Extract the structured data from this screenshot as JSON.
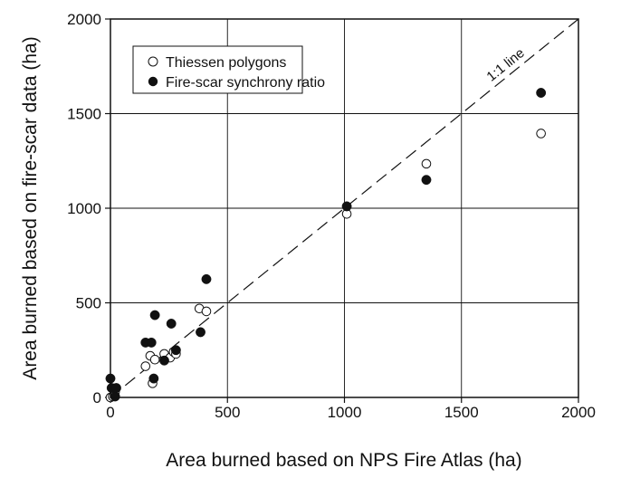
{
  "chart_data": {
    "type": "scatter",
    "title": "",
    "xlabel": "Area burned based on NPS Fire Atlas (ha)",
    "ylabel": "Area burned based on fire-scar data (ha)",
    "xlim": [
      0,
      2000
    ],
    "ylim": [
      0,
      2000
    ],
    "xticks": [
      0,
      500,
      1000,
      1500,
      2000
    ],
    "yticks": [
      0,
      500,
      1000,
      1500,
      2000
    ],
    "x_tick_labels": [
      "0",
      "500",
      "1000",
      "1500",
      "2000"
    ],
    "y_tick_labels": [
      "0",
      "500",
      "1000",
      "1500",
      "2000"
    ],
    "grid": true,
    "legend_position": "top-left",
    "reference_line": {
      "label": "1:1 line",
      "style": "dashed"
    },
    "series": [
      {
        "name": "Thiessen polygons",
        "marker": "open-circle",
        "points": [
          {
            "x": 0,
            "y": 0
          },
          {
            "x": 10,
            "y": 5
          },
          {
            "x": 20,
            "y": 30
          },
          {
            "x": 150,
            "y": 165
          },
          {
            "x": 170,
            "y": 220
          },
          {
            "x": 180,
            "y": 75
          },
          {
            "x": 190,
            "y": 200
          },
          {
            "x": 230,
            "y": 230
          },
          {
            "x": 255,
            "y": 210
          },
          {
            "x": 270,
            "y": 240
          },
          {
            "x": 280,
            "y": 230
          },
          {
            "x": 380,
            "y": 470
          },
          {
            "x": 410,
            "y": 455
          },
          {
            "x": 1010,
            "y": 970
          },
          {
            "x": 1350,
            "y": 1235
          },
          {
            "x": 1840,
            "y": 1395
          }
        ]
      },
      {
        "name": "Fire-scar synchrony ratio",
        "marker": "filled-circle",
        "points": [
          {
            "x": 0,
            "y": 100
          },
          {
            "x": 5,
            "y": 50
          },
          {
            "x": 20,
            "y": 5
          },
          {
            "x": 25,
            "y": 50
          },
          {
            "x": 150,
            "y": 290
          },
          {
            "x": 175,
            "y": 290
          },
          {
            "x": 185,
            "y": 100
          },
          {
            "x": 190,
            "y": 435
          },
          {
            "x": 230,
            "y": 195
          },
          {
            "x": 260,
            "y": 390
          },
          {
            "x": 280,
            "y": 250
          },
          {
            "x": 385,
            "y": 345
          },
          {
            "x": 410,
            "y": 625
          },
          {
            "x": 1010,
            "y": 1010
          },
          {
            "x": 1350,
            "y": 1150
          },
          {
            "x": 1840,
            "y": 1610
          }
        ]
      }
    ]
  }
}
